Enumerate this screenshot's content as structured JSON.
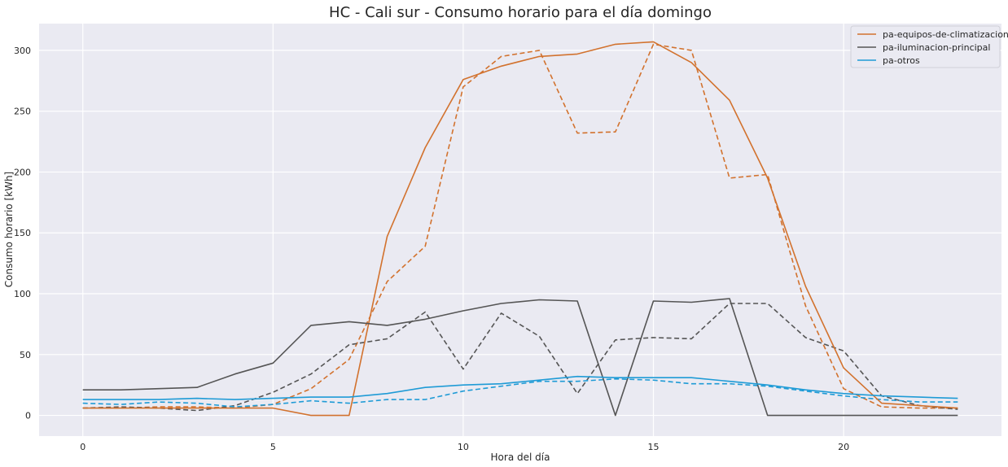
{
  "chart_data": {
    "type": "line",
    "title": "HC - Cali sur - Consumo horario para el día domingo",
    "xlabel": "Hora del día",
    "ylabel": "Consumo horario [kWh]",
    "xlim": [
      -1.15,
      24.15
    ],
    "ylim": [
      -17,
      322
    ],
    "xticks": [
      0,
      5,
      10,
      15,
      20
    ],
    "yticks": [
      0,
      50,
      100,
      150,
      200,
      250,
      300
    ],
    "grid": true,
    "legend_position": "top-right",
    "x": [
      0,
      1,
      2,
      3,
      4,
      5,
      6,
      7,
      8,
      9,
      10,
      11,
      12,
      13,
      14,
      15,
      16,
      17,
      18,
      19,
      20,
      21,
      22,
      23
    ],
    "series": [
      {
        "name": "pa-equipos-de-climatizacion",
        "color": "#d2722e",
        "style": "solid",
        "in_legend": true,
        "values": [
          6,
          6,
          6,
          6,
          6,
          6,
          0,
          0,
          147,
          220,
          276,
          287,
          295,
          297,
          305,
          307,
          290,
          259,
          195,
          106,
          39,
          10,
          8,
          6
        ]
      },
      {
        "name": "pa-iluminacion-principal",
        "color": "#555555",
        "style": "solid",
        "in_legend": true,
        "values": [
          21,
          21,
          22,
          23,
          34,
          43,
          74,
          77,
          74,
          79,
          86,
          92,
          95,
          94,
          0,
          94,
          93,
          96,
          0,
          0,
          0,
          0,
          0,
          0
        ]
      },
      {
        "name": "pa-otros",
        "color": "#1f9bd6",
        "style": "solid",
        "in_legend": true,
        "values": [
          13,
          13,
          13,
          14,
          13,
          14,
          15,
          15,
          18,
          23,
          25,
          26,
          29,
          32,
          31,
          31,
          31,
          28,
          25,
          21,
          18,
          16,
          15,
          14
        ]
      },
      {
        "color": "#d2722e",
        "style": "dashed",
        "in_legend": false,
        "values": [
          6,
          6,
          7,
          7,
          6,
          9,
          22,
          46,
          110,
          139,
          270,
          295,
          300,
          232,
          233,
          305,
          300,
          195,
          198,
          90,
          22,
          7,
          6,
          6
        ]
      },
      {
        "color": "#555555",
        "style": "dashed",
        "in_legend": false,
        "values": [
          6,
          7,
          6,
          4,
          8,
          19,
          34,
          58,
          63,
          85,
          38,
          84,
          65,
          18,
          62,
          64,
          63,
          92,
          92,
          64,
          53,
          16,
          8,
          5
        ]
      },
      {
        "color": "#1f9bd6",
        "style": "dashed",
        "in_legend": false,
        "values": [
          10,
          9,
          11,
          10,
          7,
          9,
          12,
          10,
          13,
          13,
          20,
          24,
          28,
          28,
          30,
          29,
          26,
          26,
          24,
          20,
          16,
          13,
          11,
          11
        ]
      }
    ]
  }
}
